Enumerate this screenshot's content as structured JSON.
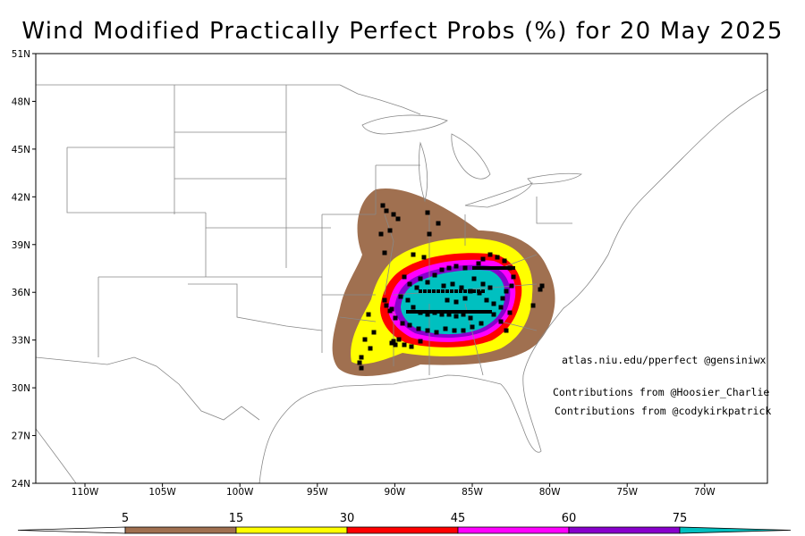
{
  "title": "Wind Modified Practically Perfect Probs (%) for 20 May 2025",
  "lat_labels": [
    "51N",
    "48N",
    "45N",
    "42N",
    "39N",
    "36N",
    "33N",
    "30N",
    "27N",
    "24N"
  ],
  "lon_labels": [
    "110W",
    "105W",
    "100W",
    "95W",
    "90W",
    "85W",
    "80W",
    "75W",
    "70W"
  ],
  "annotations": {
    "website": "atlas.niu.edu/pperfect @gensiniwx",
    "credit1": "Contributions from @Hoosier_Charlie",
    "credit2": "Contributions from @cody­kirkpatrick"
  },
  "colorbar": {
    "labels": [
      "5",
      "15",
      "30",
      "45",
      "60",
      "75"
    ],
    "colors": [
      "#a07050",
      "#ffff00",
      "#ff0000",
      "#ff00ff",
      "#8800cc",
      "#00c0c0"
    ]
  },
  "colors": {
    "land": "#ffffff",
    "borders": "#888888",
    "reports": "#000000"
  }
}
